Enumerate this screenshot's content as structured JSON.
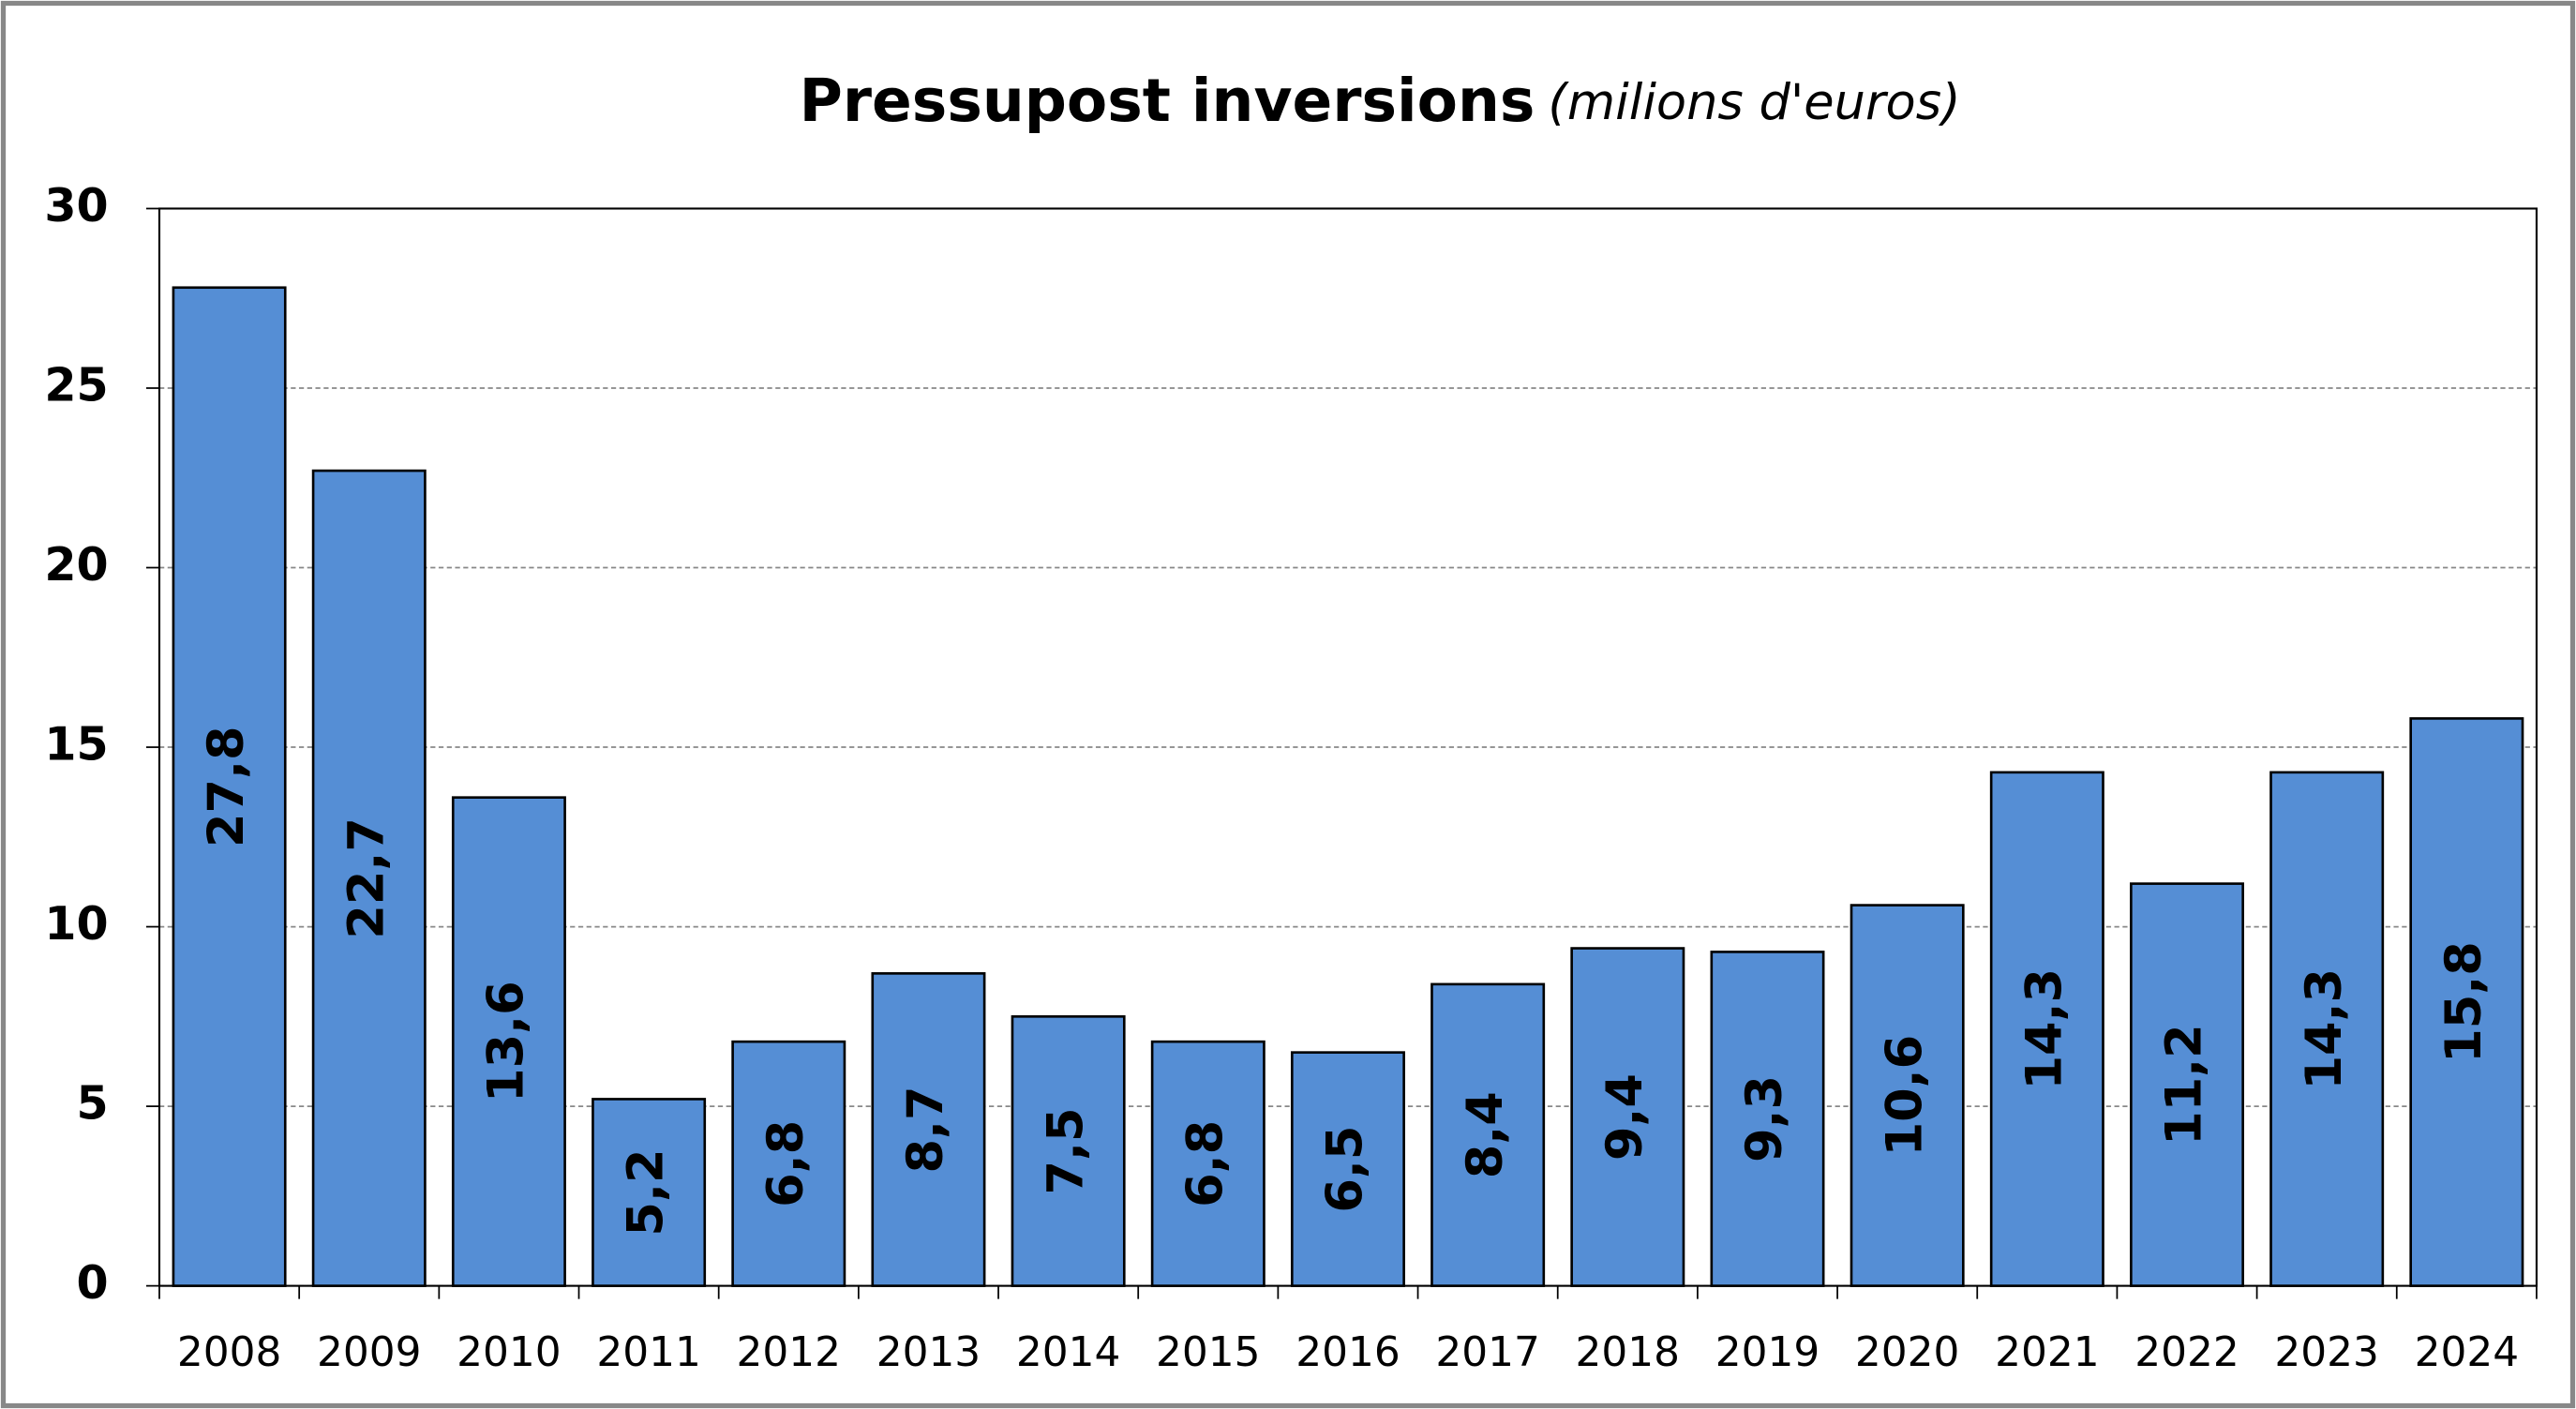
{
  "chart_data": {
    "type": "bar",
    "title": "Pressupost inversions",
    "subtitle": "(milions d'euros)",
    "categories": [
      "2008",
      "2009",
      "2010",
      "2011",
      "2012",
      "2013",
      "2014",
      "2015",
      "2016",
      "2017",
      "2018",
      "2019",
      "2020",
      "2021",
      "2022",
      "2023",
      "2024"
    ],
    "values": [
      27.8,
      22.7,
      13.6,
      5.2,
      6.8,
      8.7,
      7.5,
      6.8,
      6.5,
      8.4,
      9.4,
      9.3,
      10.6,
      14.3,
      11.2,
      14.3,
      15.8
    ],
    "value_labels": [
      "27,8",
      "22,7",
      "13,6",
      "5,2",
      "6,8",
      "8,7",
      "7,5",
      "6,8",
      "6,5",
      "8,4",
      "9,4",
      "9,3",
      "10,6",
      "14,3",
      "11,2",
      "14,3",
      "15,8"
    ],
    "color": "#558ed5",
    "ylim": [
      0,
      30
    ],
    "yticks": [
      0,
      5,
      10,
      15,
      20,
      25,
      30
    ],
    "grid": true
  }
}
